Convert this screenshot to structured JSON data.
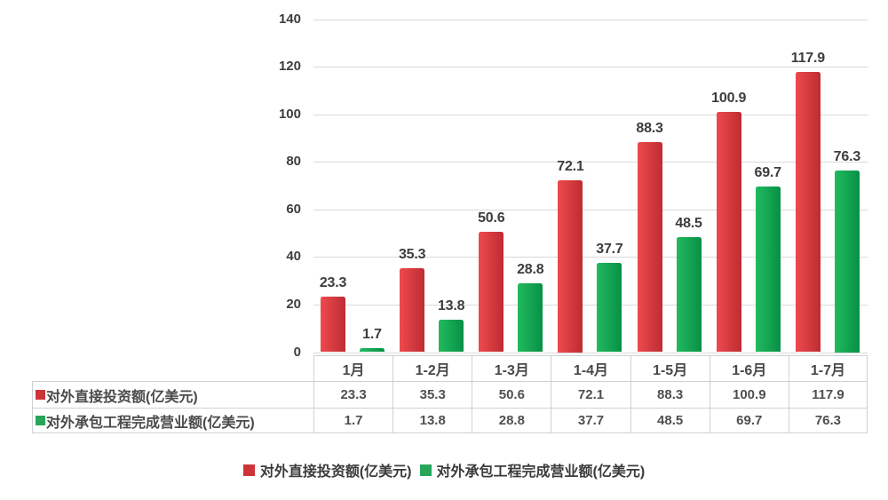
{
  "chart_data": {
    "type": "bar",
    "title": "",
    "xlabel": "",
    "ylabel": "",
    "categories": [
      "1月",
      "1-2月",
      "1-3月",
      "1-4月",
      "1-5月",
      "1-6月",
      "1-7月"
    ],
    "series": [
      {
        "name": "对外直接投资额(亿美元)",
        "values": [
          23.3,
          35.3,
          50.6,
          72.1,
          88.3,
          100.9,
          117.9
        ],
        "color_light": "#ee4a4e",
        "color_dark": "#bd2c32",
        "marker_color": "#ce3338"
      },
      {
        "name": "对外承包工程完成营业额(亿美元)",
        "values": [
          1.7,
          13.8,
          28.8,
          37.7,
          48.5,
          69.7,
          76.3
        ],
        "color_light": "#22ba5f",
        "color_dark": "#079045",
        "marker_color": "#27a65a"
      }
    ],
    "ylim": [
      0,
      140
    ],
    "y_ticks": [
      0,
      20,
      40,
      60,
      80,
      100,
      120,
      140
    ],
    "grid": true,
    "value_labels": true,
    "legend_position": "bottom",
    "data_table_shown": true
  },
  "colors": {
    "background": "#ffffff",
    "gridline": "#dadada",
    "table_border": "#ccd1d7",
    "label_text": "#3d3d3d"
  }
}
